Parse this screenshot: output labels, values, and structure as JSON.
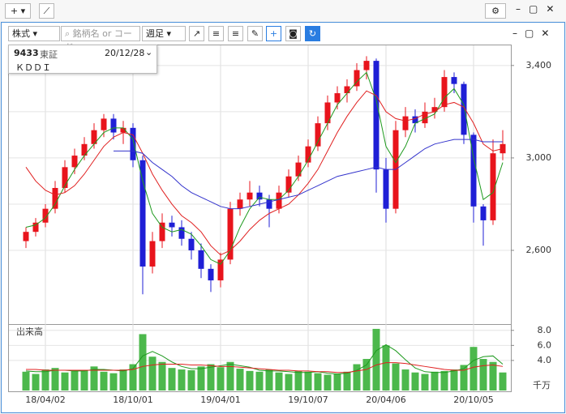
{
  "ui": {
    "filters": {
      "type": "株式",
      "search_placeholder": "銘柄名 or コード",
      "period": "週足"
    },
    "info": {
      "code": "9433",
      "market": "東証",
      "date": "20/12/28",
      "name": "ＫＤＤＩ"
    }
  },
  "chart_data": [
    {
      "type": "candlestick",
      "categories": [
        null,
        null,
        "18/04/02",
        null,
        null,
        null,
        null,
        null,
        null,
        null,
        null,
        "18/10/01",
        null,
        null,
        null,
        null,
        null,
        null,
        null,
        null,
        "19/04/01",
        null,
        null,
        null,
        null,
        null,
        null,
        null,
        null,
        "19/10/07",
        null,
        null,
        null,
        null,
        null,
        null,
        null,
        "20/04/06",
        null,
        null,
        null,
        null,
        null,
        null,
        null,
        null,
        "20/10/05",
        null,
        null,
        null
      ],
      "open": [
        2640,
        2680,
        2720,
        2780,
        2870,
        2960,
        3010,
        3060,
        3120,
        3170,
        3110,
        3130,
        2990,
        2530,
        2640,
        2720,
        2700,
        2650,
        2600,
        2520,
        2470,
        2560,
        2780,
        2820,
        2850,
        2820,
        2780,
        2850,
        2920,
        2980,
        3050,
        3150,
        3240,
        3280,
        3310,
        3380,
        3420,
        2950,
        2780,
        3120,
        3180,
        3150,
        3200,
        3220,
        3350,
        3320,
        3100,
        2790,
        2730,
        3020
      ],
      "high": [
        2700,
        2740,
        2800,
        2900,
        2990,
        3040,
        3090,
        3150,
        3190,
        3190,
        3160,
        3150,
        3010,
        2680,
        2760,
        2750,
        2730,
        2680,
        2630,
        2540,
        2590,
        2810,
        2850,
        2900,
        2880,
        2840,
        2880,
        2950,
        3010,
        3080,
        3180,
        3270,
        3310,
        3340,
        3410,
        3440,
        3430,
        3000,
        3160,
        3220,
        3210,
        3240,
        3260,
        3380,
        3370,
        3330,
        3110,
        2800,
        3080,
        3120
      ],
      "low": [
        2610,
        2660,
        2700,
        2760,
        2850,
        2930,
        2990,
        3040,
        3090,
        3080,
        3060,
        2960,
        2410,
        2500,
        2610,
        2660,
        2620,
        2560,
        2480,
        2420,
        2440,
        2540,
        2750,
        2790,
        2790,
        2700,
        2760,
        2830,
        2900,
        2960,
        3030,
        3120,
        3210,
        3240,
        3290,
        3340,
        2850,
        2720,
        2760,
        3090,
        3110,
        3130,
        3170,
        3200,
        3280,
        3060,
        2720,
        2620,
        2710,
        2990
      ],
      "close": [
        2680,
        2720,
        2780,
        2870,
        2960,
        3010,
        3060,
        3120,
        3170,
        3110,
        3130,
        2990,
        2530,
        2640,
        2720,
        2700,
        2650,
        2600,
        2520,
        2470,
        2560,
        2780,
        2820,
        2850,
        2820,
        2780,
        2850,
        2920,
        2980,
        3050,
        3150,
        3240,
        3280,
        3310,
        3380,
        3420,
        2950,
        2780,
        3120,
        3180,
        3150,
        3200,
        3220,
        3350,
        3320,
        3100,
        2790,
        2730,
        3020,
        3060
      ],
      "up_color": "#e8141c",
      "down_color": "#1f1fd6",
      "moving_averages": [
        {
          "color": "#1f9a1f",
          "values": [
            2700,
            2710,
            2740,
            2800,
            2880,
            2950,
            3010,
            3060,
            3110,
            3130,
            3130,
            3080,
            2900,
            2760,
            2700,
            2680,
            2690,
            2670,
            2620,
            2560,
            2540,
            2600,
            2700,
            2780,
            2830,
            2820,
            2820,
            2860,
            2920,
            2990,
            3070,
            3150,
            3230,
            3280,
            3330,
            3370,
            3250,
            3050,
            2980,
            3050,
            3150,
            3170,
            3190,
            3260,
            3300,
            3230,
            3000,
            2820,
            2850,
            2980
          ]
        },
        {
          "color": "#e02020",
          "values": [
            2960,
            2900,
            2860,
            2840,
            2850,
            2880,
            2930,
            2990,
            3050,
            3090,
            3110,
            3100,
            3020,
            2930,
            2860,
            2800,
            2750,
            2720,
            2680,
            2620,
            2580,
            2600,
            2640,
            2690,
            2730,
            2760,
            2780,
            2800,
            2840,
            2890,
            2950,
            3030,
            3110,
            3180,
            3240,
            3290,
            3270,
            3200,
            3170,
            3160,
            3170,
            3190,
            3200,
            3230,
            3240,
            3220,
            3150,
            3060,
            3030,
            3040
          ]
        },
        {
          "color": "#3333cc",
          "values": [
            null,
            null,
            null,
            null,
            null,
            null,
            null,
            null,
            null,
            3030,
            3030,
            3030,
            3020,
            2980,
            2950,
            2920,
            2880,
            2850,
            2830,
            2810,
            2790,
            2780,
            2780,
            2790,
            2800,
            2810,
            2820,
            2830,
            2840,
            2860,
            2880,
            2900,
            2920,
            2930,
            2940,
            2950,
            2960,
            2950,
            2950,
            2980,
            3010,
            3040,
            3060,
            3070,
            3080,
            3080,
            3080,
            3070,
            3070,
            3070
          ]
        }
      ],
      "ylim": [
        2288,
        3480
      ],
      "yticks": [
        {
          "value": 2600,
          "label": "2,600"
        },
        {
          "value": 3000,
          "label": "3,000"
        },
        {
          "value": 3400,
          "label": "3,400"
        }
      ],
      "minor_gridlines": [
        2800,
        3200
      ],
      "grid": true
    },
    {
      "type": "bar",
      "title": "出来高",
      "unit_label": "千万",
      "values": [
        2.5,
        2.2,
        2.8,
        3.0,
        2.4,
        2.6,
        2.7,
        3.2,
        2.5,
        2.3,
        2.8,
        3.5,
        7.5,
        4.5,
        3.8,
        3.0,
        2.8,
        2.7,
        3.2,
        3.5,
        3.1,
        3.8,
        2.9,
        2.6,
        2.5,
        2.8,
        2.4,
        2.2,
        2.6,
        2.5,
        2.3,
        2.1,
        2.2,
        2.5,
        3.5,
        4.2,
        8.2,
        6.0,
        3.6,
        2.8,
        2.4,
        2.2,
        2.5,
        2.6,
        2.8,
        3.4,
        5.8,
        4.2,
        3.8,
        2.4
      ],
      "color": "#4cb84c",
      "moving_averages": [
        {
          "color": "#1f9a1f",
          "values": [
            2.6,
            2.5,
            2.5,
            2.7,
            2.7,
            2.6,
            2.6,
            2.8,
            2.8,
            2.7,
            2.6,
            2.9,
            4.6,
            5.2,
            4.6,
            3.8,
            3.2,
            2.9,
            2.9,
            3.1,
            3.3,
            3.5,
            3.3,
            3.1,
            2.7,
            2.6,
            2.6,
            2.5,
            2.4,
            2.4,
            2.5,
            2.3,
            2.2,
            2.3,
            2.7,
            3.4,
            5.3,
            6.1,
            5.3,
            4.1,
            3.0,
            2.5,
            2.4,
            2.4,
            2.6,
            2.9,
            4.0,
            4.5,
            4.6,
            3.5
          ]
        },
        {
          "color": "#e02020",
          "values": [
            2.8,
            2.8,
            2.7,
            2.7,
            2.7,
            2.7,
            2.7,
            2.7,
            2.7,
            2.7,
            2.7,
            2.8,
            3.2,
            3.4,
            3.5,
            3.5,
            3.5,
            3.4,
            3.4,
            3.3,
            3.2,
            3.2,
            3.1,
            3.0,
            2.9,
            2.8,
            2.7,
            2.7,
            2.6,
            2.6,
            2.5,
            2.5,
            2.4,
            2.4,
            2.6,
            2.8,
            3.4,
            3.7,
            3.7,
            3.6,
            3.4,
            3.2,
            3.0,
            2.8,
            2.7,
            2.7,
            3.1,
            3.3,
            3.4,
            3.2
          ]
        }
      ],
      "ylim": [
        0,
        8.3
      ],
      "yticks": [
        {
          "value": 4,
          "label": "4.0"
        },
        {
          "value": 6,
          "label": "6.0"
        },
        {
          "value": 8,
          "label": "8.0"
        }
      ],
      "grid": true
    }
  ]
}
